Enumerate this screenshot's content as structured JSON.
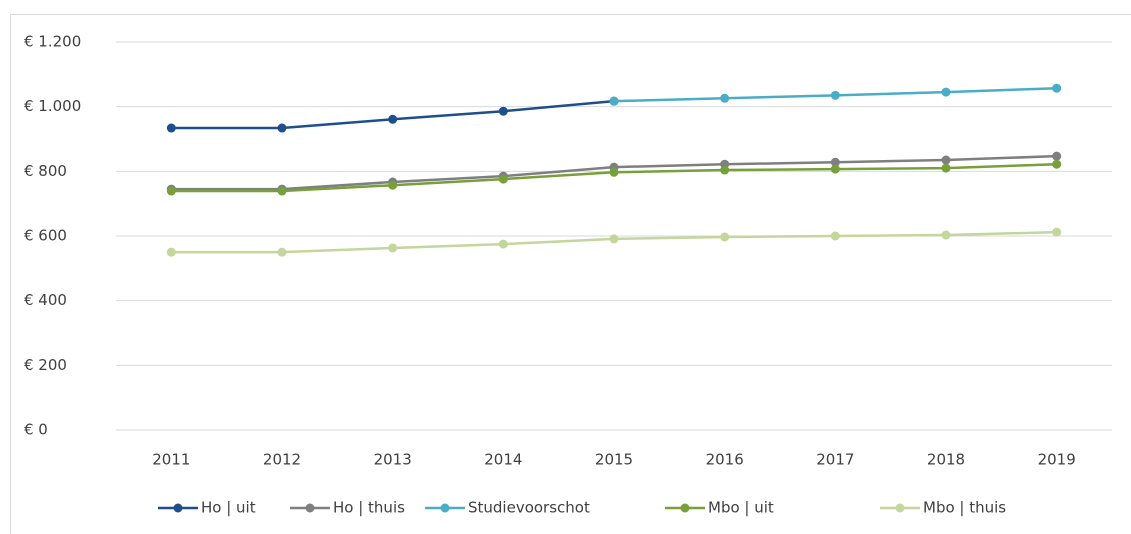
{
  "chart_data": {
    "type": "line",
    "categories": [
      "2011",
      "2012",
      "2013",
      "2014",
      "2015",
      "2016",
      "2017",
      "2018",
      "2019"
    ],
    "series": [
      {
        "name": "Ho | uit",
        "color": "#1f4e8c",
        "values": [
          934,
          934,
          961,
          986,
          1017,
          null,
          null,
          null,
          null
        ]
      },
      {
        "name": "Ho | thuis",
        "color": "#7f7f7f",
        "values": [
          745,
          745,
          767,
          785,
          813,
          822,
          828,
          835,
          847
        ]
      },
      {
        "name": "Studievoorschot",
        "color": "#4bacc6",
        "values": [
          null,
          null,
          null,
          null,
          1017,
          1026,
          1035,
          1045,
          1057
        ]
      },
      {
        "name": "Mbo | uit",
        "color": "#77a03b",
        "values": [
          739,
          739,
          757,
          776,
          797,
          804,
          807,
          810,
          822
        ]
      },
      {
        "name": "Mbo | thuis",
        "color": "#c3d69b",
        "values": [
          550,
          550,
          563,
          575,
          591,
          597,
          600,
          603,
          612
        ]
      }
    ],
    "ylim": [
      0,
      1200
    ],
    "yticks": [
      {
        "value": 0,
        "label": "€ 0"
      },
      {
        "value": 200,
        "label": "€ 200"
      },
      {
        "value": 400,
        "label": "€ 400"
      },
      {
        "value": 600,
        "label": "€ 600"
      },
      {
        "value": 800,
        "label": "€ 800"
      },
      {
        "value": 1000,
        "label": "€ 1.000"
      },
      {
        "value": 1200,
        "label": "€ 1.200"
      }
    ],
    "grid": true,
    "legend": "bottom"
  }
}
